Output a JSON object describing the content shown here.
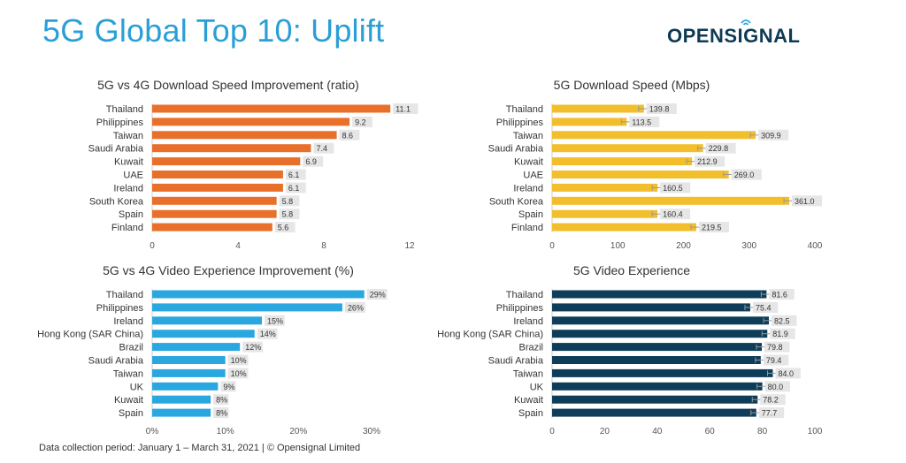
{
  "page": {
    "title": "5G Global Top 10: Uplift",
    "logo": "OPENSIGNAL",
    "footer": "Data collection period: January 1 – March 31, 2021 | © Opensignal Limited"
  },
  "chart_data": [
    {
      "type": "bar",
      "orientation": "horizontal",
      "title": "5G vs 4G Download Speed Improvement (ratio)",
      "categories": [
        "Thailand",
        "Philippines",
        "Taiwan",
        "Saudi Arabia",
        "Kuwait",
        "UAE",
        "Ireland",
        "South Korea",
        "Spain",
        "Finland"
      ],
      "values": [
        11.1,
        9.2,
        8.6,
        7.4,
        6.9,
        6.1,
        6.1,
        5.8,
        5.8,
        5.6
      ],
      "labels": [
        "11.1",
        "9.2",
        "8.6",
        "7.4",
        "6.9",
        "6.1",
        "6.1",
        "5.8",
        "5.8",
        "5.6"
      ],
      "xlim": [
        0,
        12
      ],
      "ticks": [
        0,
        4,
        8,
        12
      ],
      "tick_labels": [
        "0",
        "4",
        "8",
        "12"
      ],
      "color": "#e8702a",
      "error_bars": false
    },
    {
      "type": "bar",
      "orientation": "horizontal",
      "title": "5G Download Speed (Mbps)",
      "categories": [
        "Thailand",
        "Philippines",
        "Taiwan",
        "Saudi Arabia",
        "Kuwait",
        "UAE",
        "Ireland",
        "South Korea",
        "Spain",
        "Finland"
      ],
      "values": [
        139.8,
        113.5,
        309.9,
        229.8,
        212.9,
        269.0,
        160.5,
        361.0,
        160.4,
        219.5
      ],
      "labels": [
        "139.8",
        "113.5",
        "309.9",
        "229.8",
        "212.9",
        "269.0",
        "160.5",
        "361.0",
        "160.4",
        "219.5"
      ],
      "xlim": [
        0,
        400
      ],
      "ticks": [
        0,
        100,
        200,
        300,
        400
      ],
      "tick_labels": [
        "0",
        "100",
        "200",
        "300",
        "400"
      ],
      "color": "#f2be2c",
      "error_bars": true
    },
    {
      "type": "bar",
      "orientation": "horizontal",
      "title": "5G vs 4G Video Experience Improvement (%)",
      "categories": [
        "Thailand",
        "Philippines",
        "Ireland",
        "Hong Kong (SAR China)",
        "Brazil",
        "Saudi Arabia",
        "Taiwan",
        "UK",
        "Kuwait",
        "Spain"
      ],
      "values": [
        29,
        26,
        15,
        14,
        12,
        10,
        10,
        9,
        8,
        8
      ],
      "labels": [
        "29%",
        "26%",
        "15%",
        "14%",
        "12%",
        "10%",
        "10%",
        "9%",
        "8%",
        "8%"
      ],
      "xlim": [
        0,
        30
      ],
      "ticks": [
        0,
        10,
        20,
        30
      ],
      "tick_labels": [
        "0%",
        "10%",
        "20%",
        "30%"
      ],
      "color": "#2aa7de",
      "error_bars": false
    },
    {
      "type": "bar",
      "orientation": "horizontal",
      "title": "5G Video Experience",
      "categories": [
        "Thailand",
        "Philippines",
        "Ireland",
        "Hong Kong (SAR China)",
        "Brazil",
        "Saudi Arabia",
        "Taiwan",
        "UK",
        "Kuwait",
        "Spain"
      ],
      "values": [
        81.6,
        75.4,
        82.5,
        81.9,
        79.8,
        79.4,
        84.0,
        80.0,
        78.2,
        77.7
      ],
      "labels": [
        "81.6",
        "75.4",
        "82.5",
        "81.9",
        "79.8",
        "79.4",
        "84.0",
        "80.0",
        "78.2",
        "77.7"
      ],
      "xlim": [
        0,
        100
      ],
      "ticks": [
        0,
        20,
        40,
        60,
        80,
        100
      ],
      "tick_labels": [
        "0",
        "20",
        "40",
        "60",
        "80",
        "100"
      ],
      "color": "#0d3d58",
      "error_bars": true
    }
  ]
}
